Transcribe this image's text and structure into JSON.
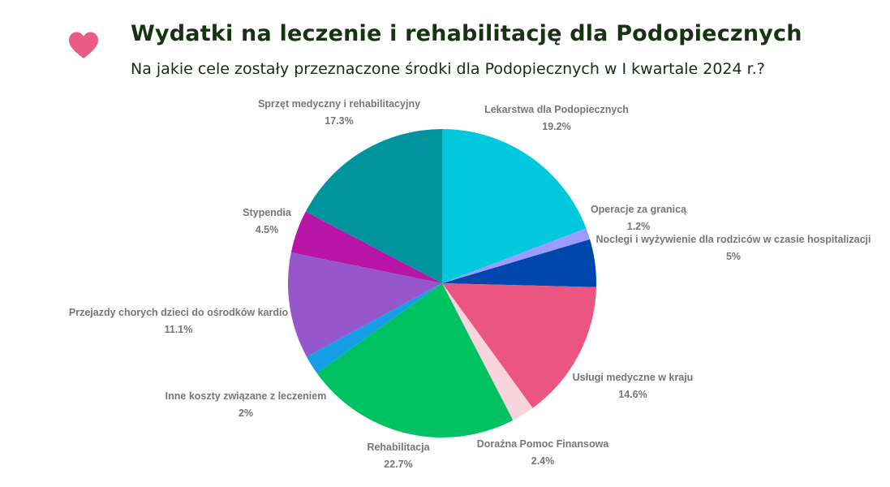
{
  "header": {
    "title": "Wydatki na leczenie i rehabilitację dla Podopiecznych",
    "subtitle": "Na jakie cele zostały przeznaczone środki dla Podopiecznych w I kwartale 2024 r.?",
    "icon": "heart-icon",
    "icon_color": "#eb5b85"
  },
  "chart_data": {
    "type": "pie",
    "title": "Wydatki na leczenie i rehabilitację dla Podopiecznych",
    "subtitle": "Na jakie cele zostały przeznaczone środki dla Podopiecznych w I kwartale 2024 r.?",
    "start": "12 o'clock, clockwise",
    "legend": "none (slice labels outside)",
    "slices": [
      {
        "label": "Lekarstwa dla Podopiecznych",
        "value": 19.2,
        "value_label": "19.2%",
        "color": "#00c9de"
      },
      {
        "label": "Operacje za granicą",
        "value": 1.2,
        "value_label": "1.2%",
        "color": "#9c9cff"
      },
      {
        "label": "Noclegi i wyżywienie dla rodziców w czasie hospitalizacji",
        "value": 5,
        "value_label": "5%",
        "color": "#0047ad"
      },
      {
        "label": "Usługi medyczne w kraju",
        "value": 14.6,
        "value_label": "14.6%",
        "color": "#ea5681"
      },
      {
        "label": "Doraźna Pomoc Finansowa",
        "value": 2.4,
        "value_label": "2.4%",
        "color": "#f8d4df"
      },
      {
        "label": "Rehabilitacja",
        "value": 22.7,
        "value_label": "22.7%",
        "color": "#00c263"
      },
      {
        "label": "Inne koszty związane z leczeniem",
        "value": 2,
        "value_label": "2%",
        "color": "#149fe6"
      },
      {
        "label": "Przejazdy chorych dzieci do ośrodków kardio",
        "value": 11.1,
        "value_label": "11.1%",
        "color": "#9757cc"
      },
      {
        "label": "Stypendia",
        "value": 4.5,
        "value_label": "4.5%",
        "color": "#b815a6"
      },
      {
        "label": "Sprzęt medyczny i rehabilitacyjny",
        "value": 17.3,
        "value_label": "17.3%",
        "color": "#00959e"
      }
    ]
  }
}
